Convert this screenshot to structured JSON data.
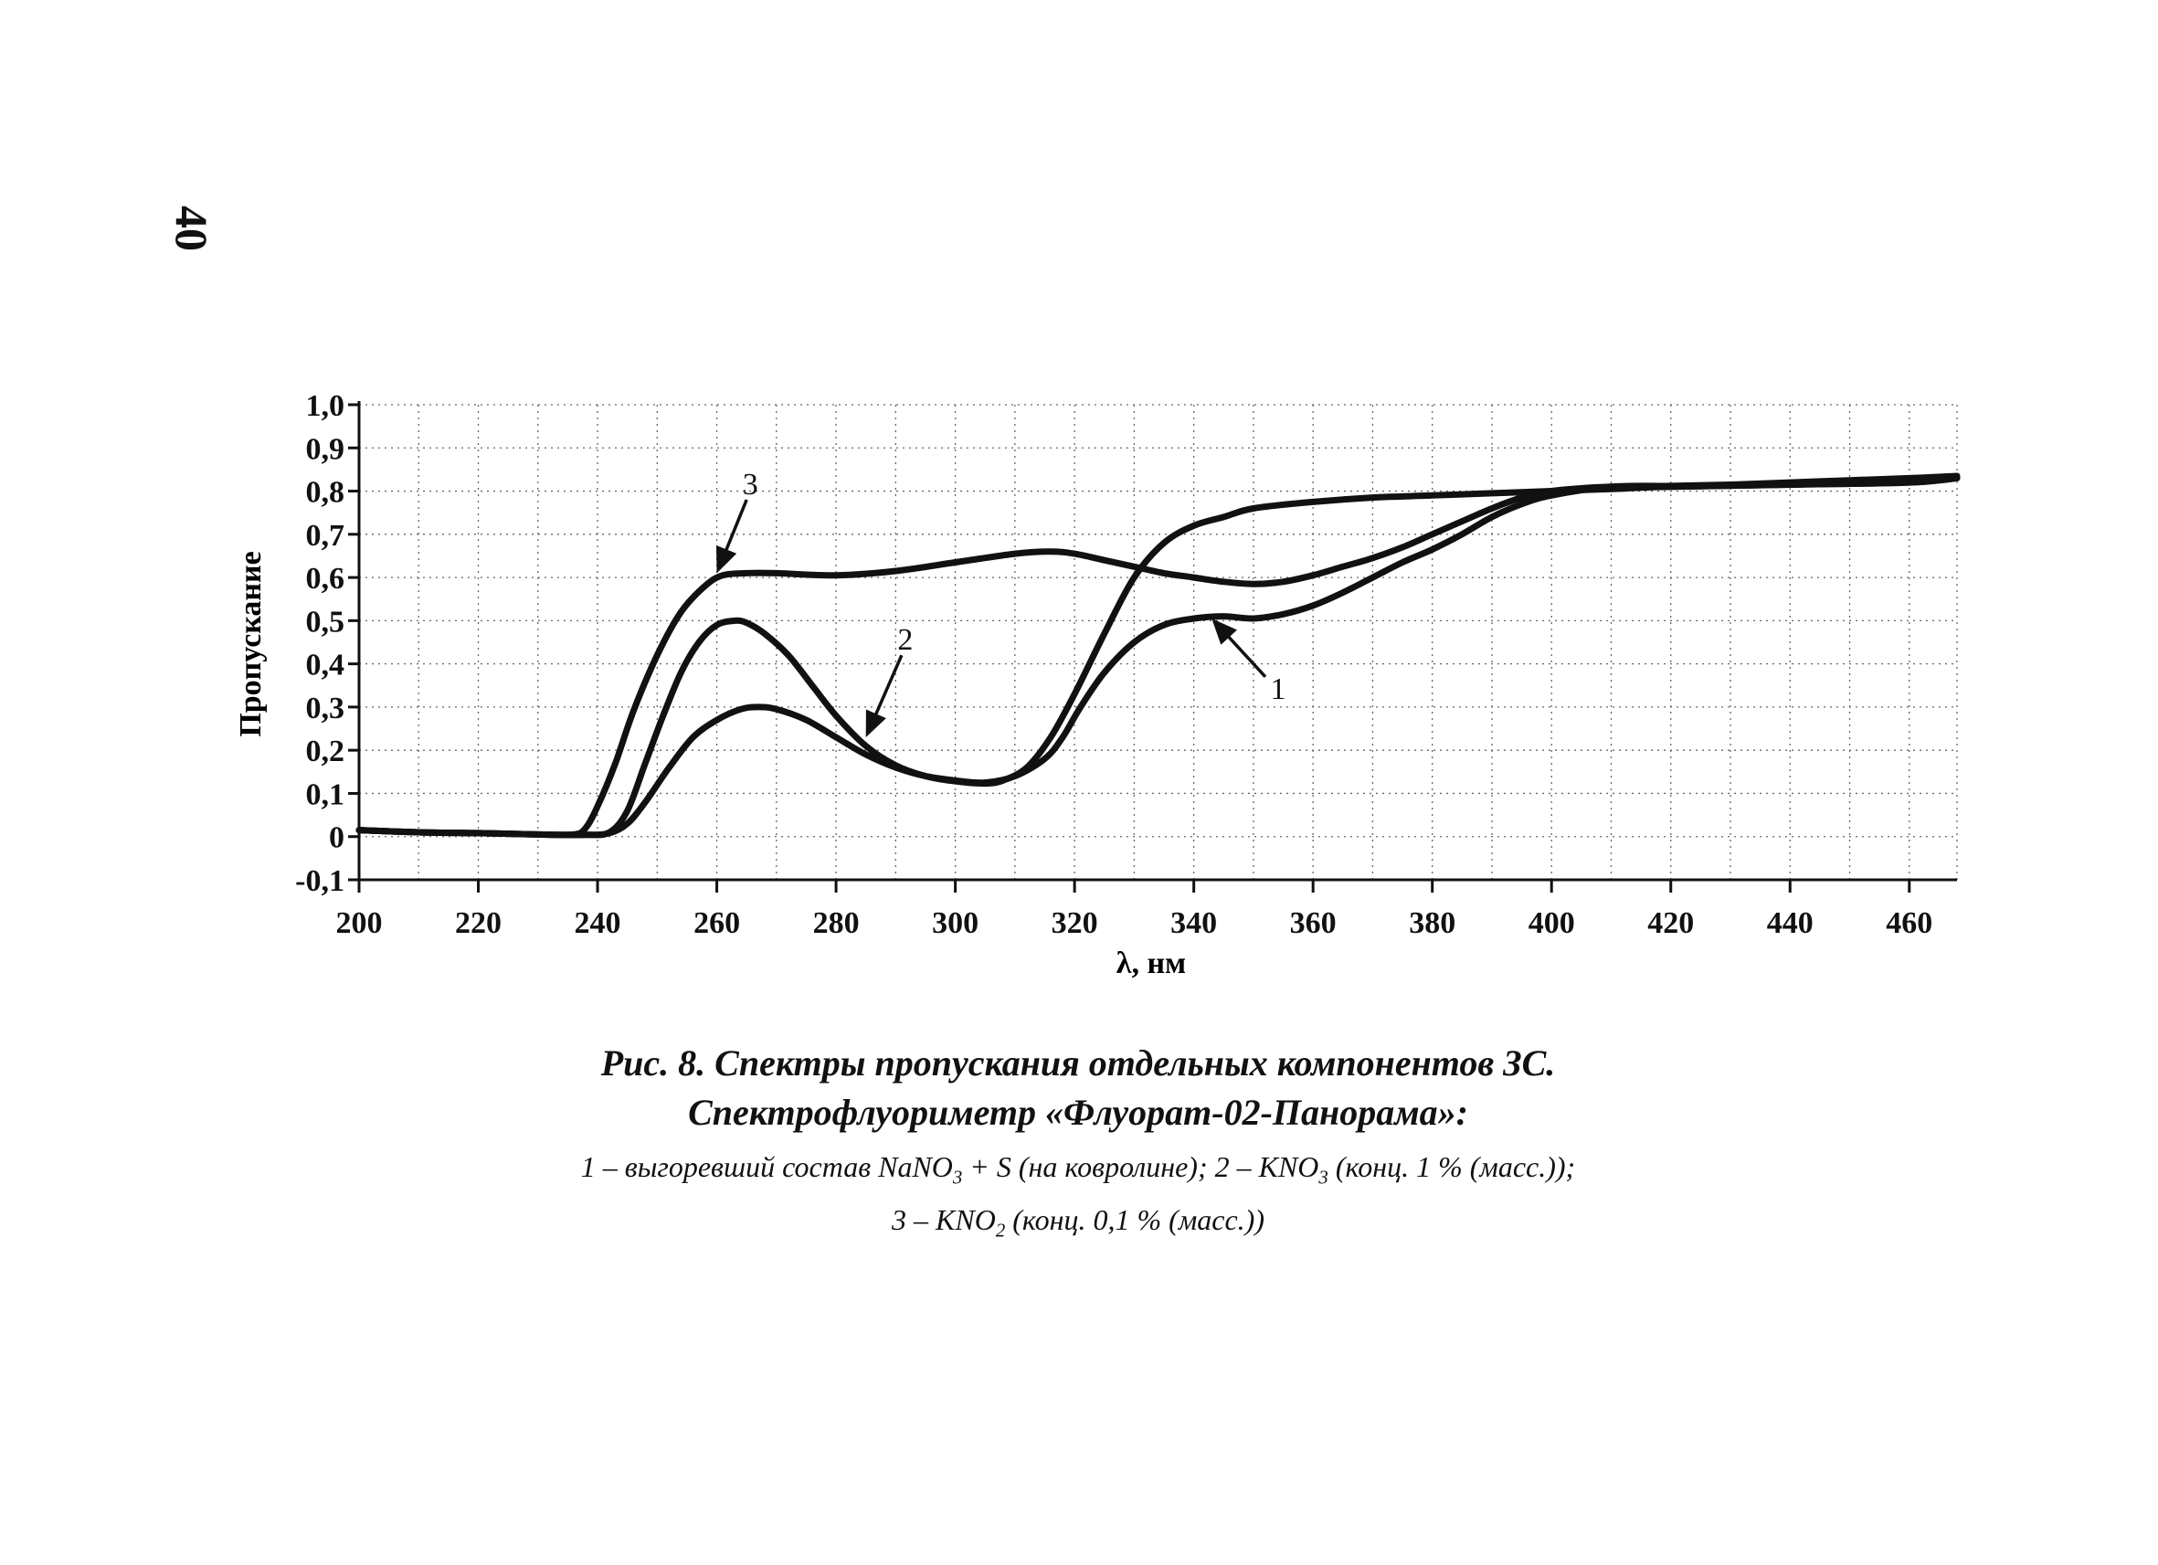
{
  "page": {
    "number": "40"
  },
  "caption": {
    "line1": "Рис. 8. Спектры пропускания отдельных компонентов ЗС.",
    "line2": "Спектрофлуориметр «Флуорат-02-Панорама»:",
    "legend1_parts": [
      "1 – выгоревший состав NaNO",
      "3",
      " + S (на ковролине); 2 – KNO",
      "3",
      " (конц. 1 % (масс.));"
    ],
    "legend2_parts": [
      "3 – KNO",
      "2",
      " (конц. 0,1 % (масс.))"
    ]
  },
  "chart_data": {
    "type": "line",
    "xlabel": "λ, нм",
    "ylabel": "Пропускание",
    "xlim": [
      200,
      468
    ],
    "ylim": [
      -0.1,
      1.0
    ],
    "x_ticks": [
      "200",
      "220",
      "240",
      "260",
      "280",
      "300",
      "320",
      "340",
      "360",
      "380",
      "400",
      "420",
      "440",
      "460"
    ],
    "y_ticks": [
      "1,0",
      "0,9",
      "0,8",
      "0,7",
      "0,6",
      "0,5",
      "0,4",
      "0,3",
      "0,2",
      "0,1",
      "0",
      "-0,1"
    ],
    "x_tick_values": [
      200,
      220,
      240,
      260,
      280,
      300,
      320,
      340,
      360,
      380,
      400,
      420,
      440,
      460
    ],
    "y_tick_values": [
      1.0,
      0.9,
      0.8,
      0.7,
      0.6,
      0.5,
      0.4,
      0.3,
      0.2,
      0.1,
      0.0,
      -0.1
    ],
    "grid": true,
    "grid_style": "dotted",
    "line_color": "#111111",
    "series": [
      {
        "name": "1",
        "x": [
          200,
          210,
          220,
          230,
          238,
          242,
          245,
          248,
          252,
          256,
          260,
          264,
          267,
          270,
          275,
          280,
          285,
          290,
          295,
          300,
          305,
          310,
          315,
          318,
          321,
          325,
          330,
          335,
          340,
          345,
          350,
          355,
          360,
          365,
          370,
          375,
          380,
          385,
          390,
          395,
          400,
          410,
          420,
          430,
          440,
          450,
          460,
          468
        ],
        "y": [
          0.015,
          0.01,
          0.008,
          0.005,
          0.004,
          0.008,
          0.03,
          0.08,
          0.16,
          0.23,
          0.27,
          0.295,
          0.3,
          0.295,
          0.27,
          0.23,
          0.19,
          0.16,
          0.14,
          0.13,
          0.125,
          0.14,
          0.18,
          0.23,
          0.3,
          0.38,
          0.45,
          0.49,
          0.505,
          0.51,
          0.505,
          0.515,
          0.535,
          0.565,
          0.6,
          0.635,
          0.665,
          0.7,
          0.74,
          0.77,
          0.79,
          0.81,
          0.812,
          0.815,
          0.82,
          0.825,
          0.83,
          0.835
        ]
      },
      {
        "name": "2",
        "x": [
          200,
          210,
          220,
          230,
          238,
          242,
          245,
          248,
          251,
          254,
          257,
          260,
          263,
          265,
          268,
          272,
          276,
          280,
          285,
          290,
          295,
          300,
          305,
          308,
          312,
          316,
          320,
          325,
          330,
          335,
          340,
          345,
          350,
          360,
          370,
          380,
          390,
          400,
          410,
          420,
          440,
          460,
          468
        ],
        "y": [
          0.015,
          0.01,
          0.008,
          0.005,
          0.004,
          0.01,
          0.06,
          0.17,
          0.28,
          0.38,
          0.45,
          0.49,
          0.5,
          0.495,
          0.47,
          0.42,
          0.35,
          0.28,
          0.21,
          0.165,
          0.14,
          0.128,
          0.123,
          0.13,
          0.16,
          0.23,
          0.33,
          0.47,
          0.6,
          0.68,
          0.72,
          0.74,
          0.76,
          0.775,
          0.785,
          0.79,
          0.795,
          0.8,
          0.805,
          0.81,
          0.815,
          0.82,
          0.83
        ]
      },
      {
        "name": "3",
        "x": [
          200,
          210,
          220,
          230,
          236,
          238,
          240,
          243,
          246,
          250,
          254,
          258,
          261,
          265,
          270,
          280,
          290,
          300,
          310,
          316,
          320,
          325,
          330,
          335,
          340,
          345,
          350,
          355,
          360,
          365,
          370,
          375,
          380,
          385,
          390,
          395,
          400,
          410,
          420,
          440,
          460,
          468
        ],
        "y": [
          0.015,
          0.01,
          0.008,
          0.005,
          0.005,
          0.02,
          0.07,
          0.17,
          0.29,
          0.42,
          0.52,
          0.58,
          0.605,
          0.61,
          0.61,
          0.605,
          0.615,
          0.635,
          0.655,
          0.66,
          0.655,
          0.64,
          0.625,
          0.61,
          0.6,
          0.59,
          0.585,
          0.59,
          0.605,
          0.625,
          0.645,
          0.67,
          0.7,
          0.73,
          0.76,
          0.785,
          0.8,
          0.81,
          0.81,
          0.815,
          0.82,
          0.83
        ]
      }
    ],
    "annotations": [
      {
        "text": "1",
        "target_x": 343,
        "target_y": 0.505,
        "label_x": 352,
        "label_y": 0.37
      },
      {
        "text": "2",
        "target_x": 285,
        "target_y": 0.23,
        "label_x": 291,
        "label_y": 0.42
      },
      {
        "text": "3",
        "target_x": 260,
        "target_y": 0.61,
        "label_x": 265,
        "label_y": 0.78
      }
    ]
  }
}
